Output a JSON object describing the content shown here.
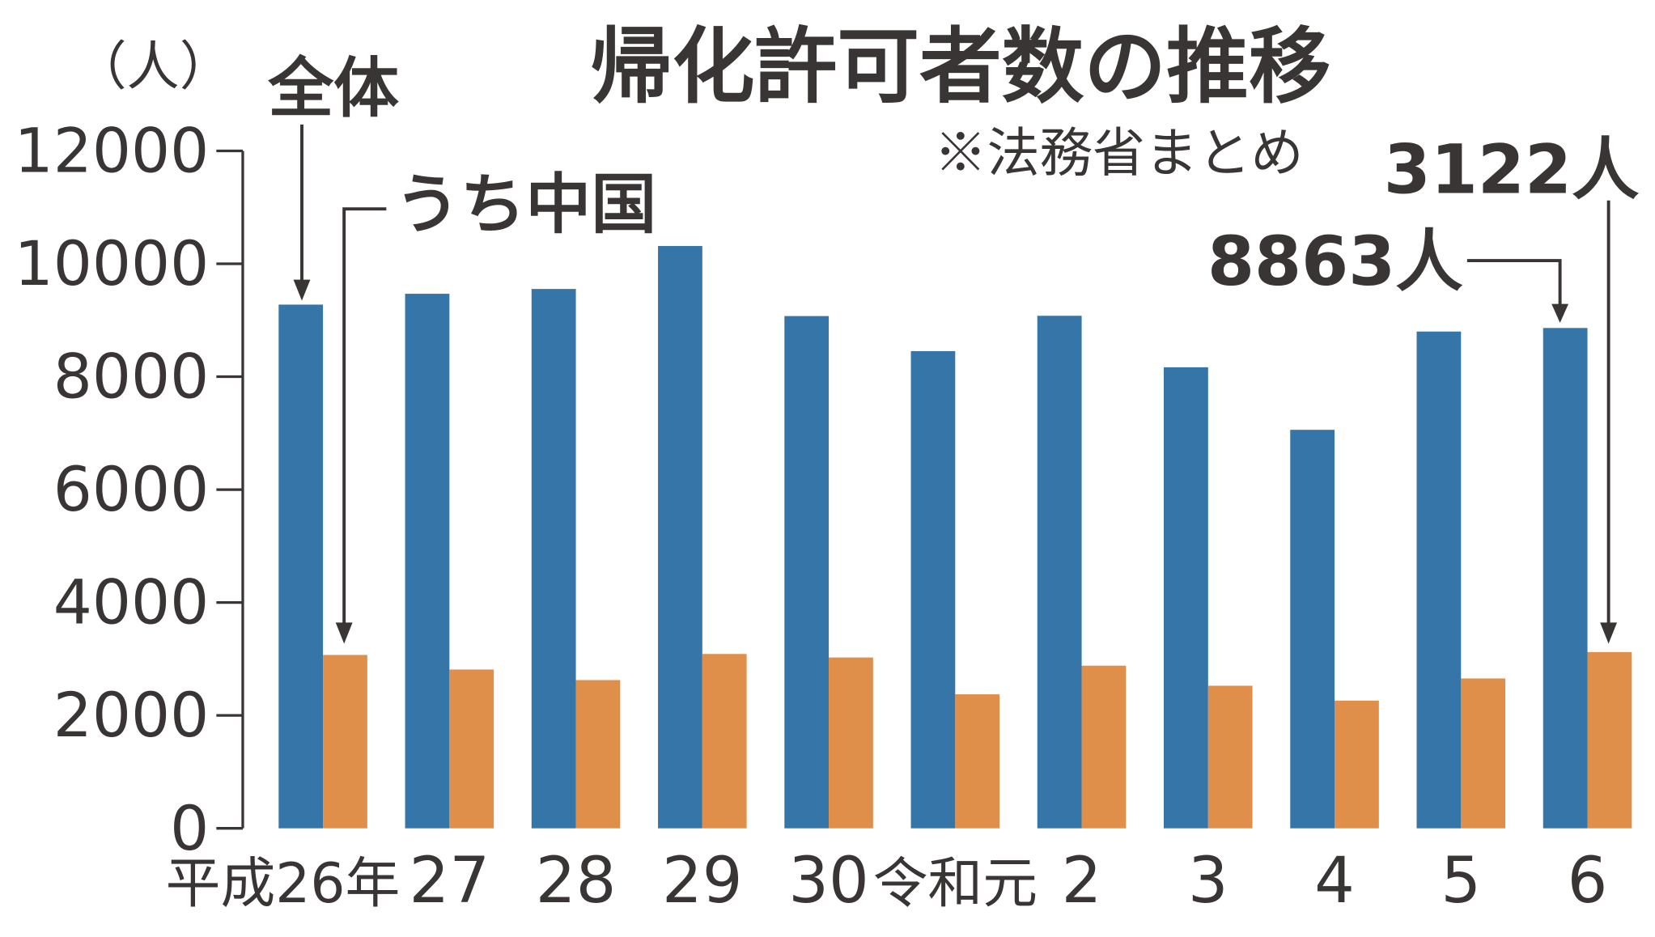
{
  "chart_data": {
    "type": "bar",
    "title": "帰化許可者数の推移",
    "source_note": "※法務省まとめ",
    "ylabel": "（人）",
    "ylim": [
      0,
      12000
    ],
    "yticks": [
      "0",
      "2000",
      "4000",
      "6000",
      "8000",
      "10000",
      "12000"
    ],
    "grid": false,
    "categories": [
      "平成26年",
      "27",
      "28",
      "29",
      "30",
      "令和元",
      "2",
      "3",
      "4",
      "5",
      "6"
    ],
    "series": [
      {
        "name": "全体",
        "color": "#3575a7",
        "values": [
          9277,
          9469,
          9554,
          10315,
          9074,
          8453,
          9079,
          8167,
          7059,
          8800,
          8863
        ]
      },
      {
        "name": "うち中国",
        "color": "#df8f49",
        "values": [
          3071,
          2813,
          2626,
          3088,
          3026,
          2374,
          2881,
          2526,
          2262,
          2655,
          3122
        ]
      }
    ],
    "annotations": {
      "total_latest": "8863人",
      "china_latest": "3122人"
    }
  }
}
